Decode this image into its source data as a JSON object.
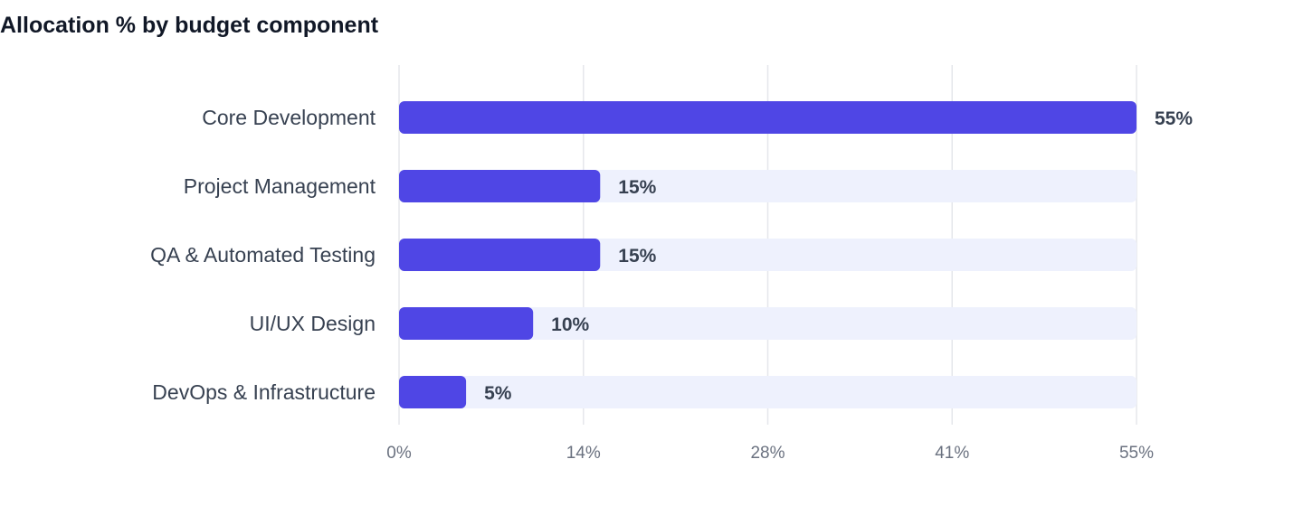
{
  "chart_data": {
    "type": "bar",
    "orientation": "horizontal",
    "title": "Allocation % by budget component",
    "categories": [
      "Core Development",
      "Project Management",
      "QA & Automated Testing",
      "UI/UX Design",
      "DevOps & Infrastructure"
    ],
    "values": [
      55,
      15,
      15,
      10,
      5
    ],
    "value_labels": [
      "55%",
      "15%",
      "15%",
      "10%",
      "5%"
    ],
    "xlim": [
      0,
      55
    ],
    "x_ticks": [
      0,
      13.75,
      27.5,
      41.25,
      55
    ],
    "x_tick_labels": [
      "0%",
      "14%",
      "28%",
      "41%",
      "55%"
    ],
    "xlabel": "",
    "ylabel": "",
    "grid": "vertical",
    "legend": "none",
    "colors": {
      "bar": "#4f46e5",
      "track": "#eef1fd",
      "grid": "#e5e7eb"
    }
  }
}
